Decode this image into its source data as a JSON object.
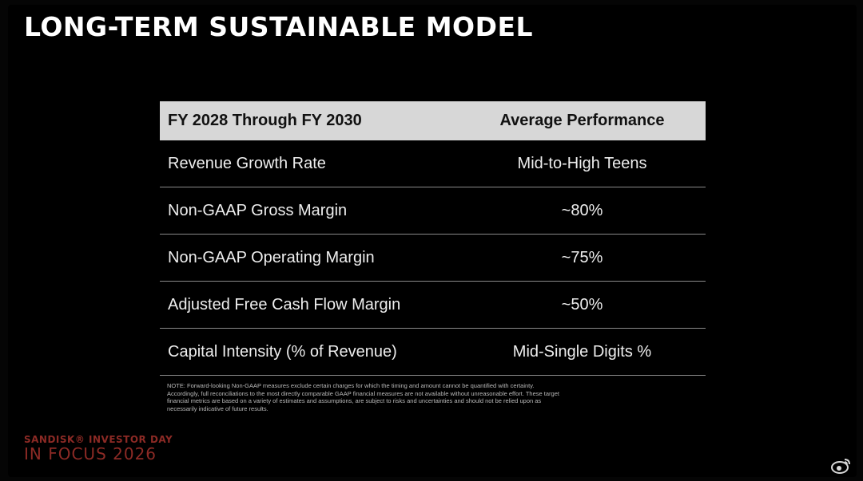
{
  "slide": {
    "title": "LONG-TERM SUSTAINABLE MODEL"
  },
  "table": {
    "header": {
      "col1": "FY 2028 Through FY 2030",
      "col2": "Average Performance"
    },
    "rows": [
      {
        "metric": "Revenue Growth Rate",
        "value": "Mid-to-High Teens"
      },
      {
        "metric": "Non-GAAP Gross Margin",
        "value": "~80%"
      },
      {
        "metric": "Non-GAAP Operating Margin",
        "value": "~75%"
      },
      {
        "metric": "Adjusted Free Cash Flow Margin",
        "value": "~50%"
      },
      {
        "metric": "Capital Intensity (% of Revenue)",
        "value": "Mid-Single Digits %"
      }
    ]
  },
  "note": "NOTE: Forward-looking Non-GAAP measures exclude certain charges for which the timing and amount cannot be quantified with certainty. Accordingly, full reconciliations to the most directly comparable GAAP financial measures are not available without unreasonable effort. These target financial metrics are based on a variety of estimates and assumptions, are subject to risks and uncertainties and should not be relied upon as necessarily indicative of future results.",
  "brand": {
    "line1": "SANDISK® INVESTOR DAY",
    "line2": "IN FOCUS 2026"
  },
  "watermark": {
    "icon": "weibo-logo-icon"
  },
  "colors": {
    "background": "#000000",
    "header_fill": "#d7d7d7",
    "brand_red": "#8c2a25",
    "divider": "#8a8a8a"
  }
}
